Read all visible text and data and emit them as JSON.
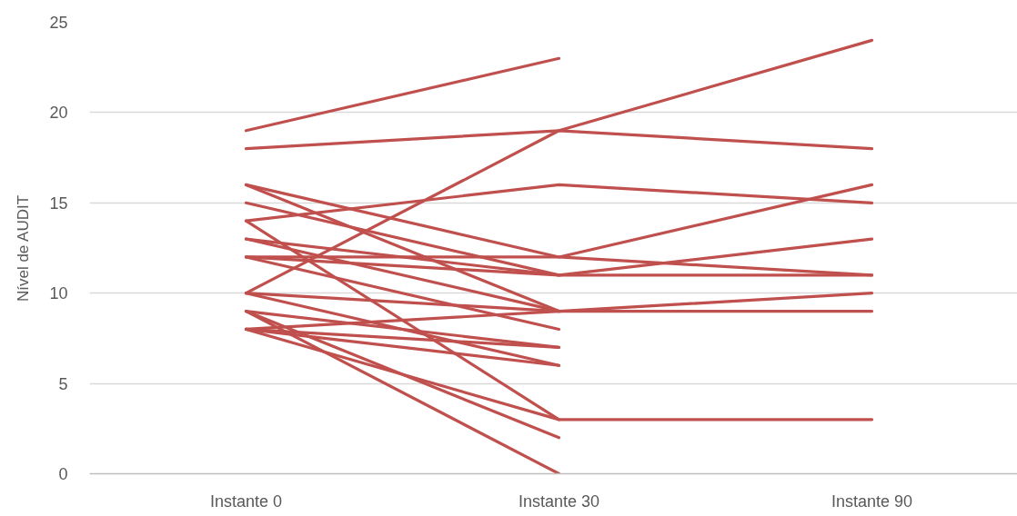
{
  "chart_data": {
    "type": "line",
    "ylabel": "Nível de AUDIT",
    "categories": [
      "Instante 0",
      "Instante 30",
      "Instante 90"
    ],
    "ylim": [
      0,
      25
    ],
    "yticks": [
      0,
      5,
      10,
      15,
      20,
      25
    ],
    "grid": "y",
    "line_style": "solid",
    "series": [
      {
        "color": "#c0504d",
        "values": [
          19,
          23,
          null
        ]
      },
      {
        "color": "#c0504d",
        "values": [
          18,
          19,
          18
        ]
      },
      {
        "color": "#c0504d",
        "values": [
          10,
          19,
          24
        ]
      },
      {
        "color": "#c0504d",
        "values": [
          14,
          16,
          15
        ]
      },
      {
        "color": "#c0504d",
        "values": [
          16,
          12,
          16
        ]
      },
      {
        "color": "#c0504d",
        "values": [
          12,
          12,
          11
        ]
      },
      {
        "color": "#c0504d",
        "values": [
          15,
          11,
          13
        ]
      },
      {
        "color": "#c0504d",
        "values": [
          13,
          11,
          11
        ]
      },
      {
        "color": "#c0504d",
        "values": [
          16,
          9,
          null
        ]
      },
      {
        "color": "#c0504d",
        "values": [
          13,
          9,
          null
        ]
      },
      {
        "color": "#c0504d",
        "values": [
          12,
          11,
          null
        ]
      },
      {
        "color": "#c0504d",
        "values": [
          10,
          9,
          10
        ]
      },
      {
        "color": "#c0504d",
        "values": [
          8,
          9,
          9
        ]
      },
      {
        "color": "#c0504d",
        "values": [
          14,
          3,
          3
        ]
      },
      {
        "color": "#c0504d",
        "values": [
          12,
          8,
          null
        ]
      },
      {
        "color": "#c0504d",
        "values": [
          10,
          6,
          null
        ]
      },
      {
        "color": "#c0504d",
        "values": [
          9,
          7,
          null
        ]
      },
      {
        "color": "#c0504d",
        "values": [
          8,
          7,
          null
        ]
      },
      {
        "color": "#c0504d",
        "values": [
          8,
          6,
          null
        ]
      },
      {
        "color": "#c0504d",
        "values": [
          8,
          3,
          null
        ]
      },
      {
        "color": "#c0504d",
        "values": [
          9,
          2,
          null
        ]
      },
      {
        "color": "#c0504d",
        "values": [
          9,
          0,
          null
        ]
      }
    ]
  }
}
